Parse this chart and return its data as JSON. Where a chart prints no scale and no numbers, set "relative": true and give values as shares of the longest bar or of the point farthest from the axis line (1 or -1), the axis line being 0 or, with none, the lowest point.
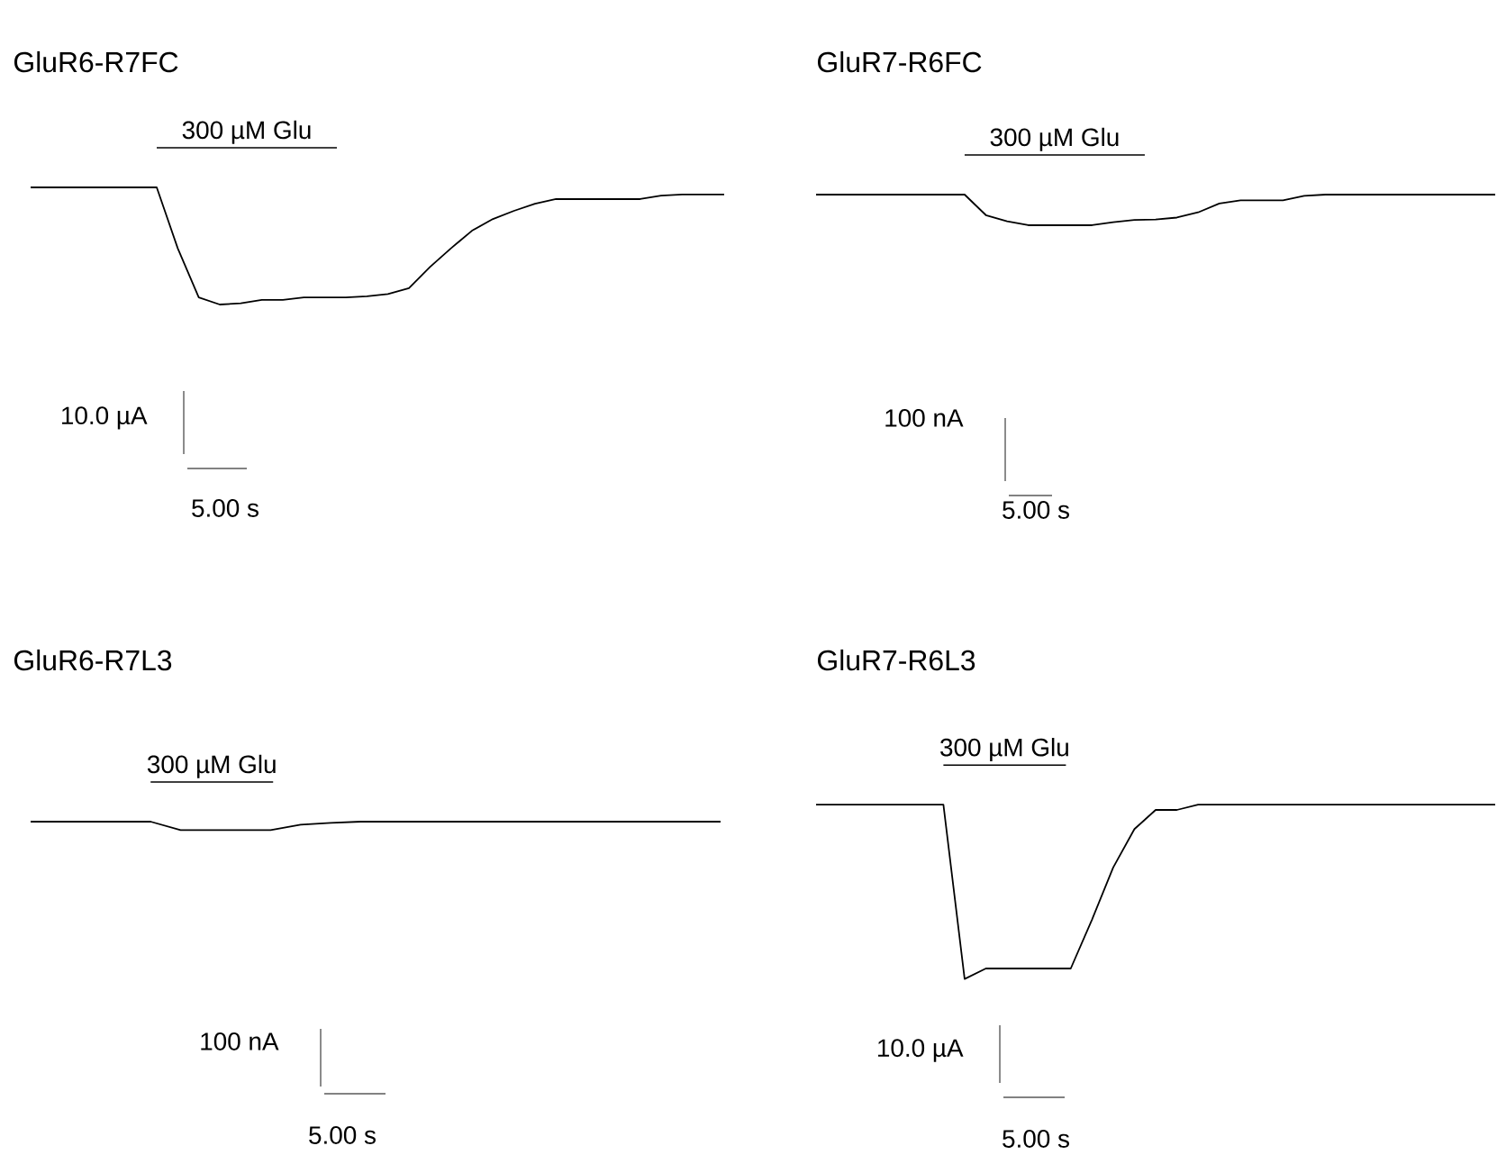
{
  "chart_data": [
    {
      "type": "line",
      "title": "GluR6-R7FC",
      "relative": true,
      "color": "#000000",
      "annotations": [
        "300 µM Glu",
        "10.0 µA",
        "5.00 s"
      ],
      "categories": [
        null,
        null,
        null,
        null,
        null,
        null,
        null,
        null,
        null,
        null,
        null,
        null,
        null,
        null,
        null,
        null,
        null,
        null,
        null,
        null,
        null,
        null,
        null,
        null,
        null,
        null,
        null,
        null,
        null,
        null,
        null,
        null,
        null,
        null
      ],
      "values": [
        1,
        1,
        1,
        1,
        1,
        1,
        1,
        0.48,
        0.06,
        0,
        0.01,
        0.04,
        0.04,
        0.06,
        0.06,
        0.06,
        0.07,
        0.09,
        0.14,
        0.32,
        0.48,
        0.63,
        0.73,
        0.8,
        0.86,
        0.9,
        0.9,
        0.9,
        0.9,
        0.9,
        0.93,
        0.94,
        0.94,
        0.94
      ]
    },
    {
      "type": "line",
      "title": "GluR7-R6FC",
      "relative": true,
      "color": "#000000",
      "annotations": [
        "300 µM Glu",
        "100 nA",
        "5.00 s"
      ],
      "categories": [
        null,
        null,
        null,
        null,
        null,
        null,
        null,
        null,
        null,
        null,
        null,
        null,
        null,
        null,
        null,
        null,
        null,
        null,
        null,
        null,
        null,
        null,
        null,
        null,
        null,
        null,
        null,
        null,
        null,
        null,
        null,
        null,
        null
      ],
      "values": [
        1,
        1,
        1,
        1,
        1,
        1,
        1,
        1,
        0.33,
        0.13,
        0,
        0,
        0,
        0,
        0.1,
        0.17,
        0.19,
        0.25,
        0.42,
        0.71,
        0.81,
        0.81,
        0.81,
        0.96,
        1,
        1,
        1,
        1,
        1,
        1,
        1,
        1,
        1
      ]
    },
    {
      "type": "line",
      "title": "GluR6-R7L3",
      "relative": true,
      "color": "#000000",
      "annotations": [
        "300 µM Glu",
        "100 nA",
        "5.00 s"
      ],
      "categories": [
        null,
        null,
        null,
        null,
        null,
        null,
        null,
        null,
        null,
        null,
        null,
        null,
        null,
        null,
        null,
        null,
        null,
        null,
        null,
        null,
        null,
        null,
        null,
        null
      ],
      "values": [
        1,
        1,
        1,
        1,
        1,
        0,
        0,
        0,
        0,
        0.64,
        0.86,
        1,
        1,
        1,
        1,
        1,
        1,
        1,
        1,
        1,
        1,
        1,
        1,
        1
      ]
    },
    {
      "type": "line",
      "title": "GluR7-R6L3",
      "relative": true,
      "color": "#000000",
      "annotations": [
        "300 µM Glu",
        "10.0 µA",
        "5.00 s"
      ],
      "categories": [
        null,
        null,
        null,
        null,
        null,
        null,
        null,
        null,
        null,
        null,
        null,
        null,
        null,
        null,
        null,
        null,
        null,
        null,
        null,
        null,
        null,
        null,
        null,
        null,
        null,
        null,
        null,
        null,
        null,
        null,
        null,
        null,
        null
      ],
      "values": [
        1,
        1,
        1,
        1,
        1,
        1,
        1,
        0,
        0.06,
        0.06,
        0.06,
        0.06,
        0.06,
        0.34,
        0.64,
        0.86,
        0.97,
        0.97,
        1,
        1,
        1,
        1,
        1,
        1,
        1,
        1,
        1,
        1,
        1,
        1,
        1,
        1,
        1
      ]
    }
  ]
}
